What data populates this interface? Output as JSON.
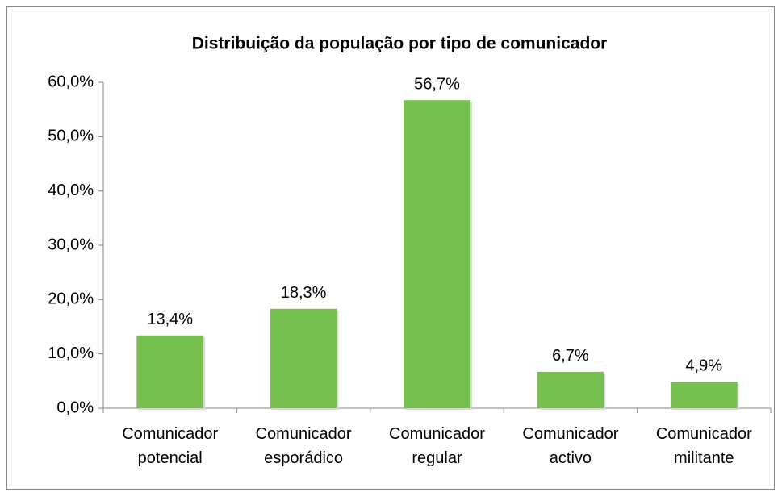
{
  "chart_data": {
    "type": "bar",
    "title": "Distribuição da população por tipo de comunicador",
    "categories": [
      "Comunicador potencial",
      "Comunicador esporádico",
      "Comunicador regular",
      "Comunicador activo",
      "Comunicador militante"
    ],
    "values": [
      13.4,
      18.3,
      56.7,
      6.7,
      4.9
    ],
    "value_labels": [
      "13,4%",
      "18,3%",
      "56,7%",
      "6,7%",
      "4,9%"
    ],
    "color": "#77c04f",
    "ylim": [
      0,
      60
    ],
    "yticks": [
      {
        "value": 0,
        "label": "0,0%"
      },
      {
        "value": 10,
        "label": "10,0%"
      },
      {
        "value": 20,
        "label": "20,0%"
      },
      {
        "value": 30,
        "label": "30,0%"
      },
      {
        "value": 40,
        "label": "40,0%"
      },
      {
        "value": 50,
        "label": "50,0%"
      },
      {
        "value": 60,
        "label": "60,0%"
      }
    ],
    "grid": false
  }
}
